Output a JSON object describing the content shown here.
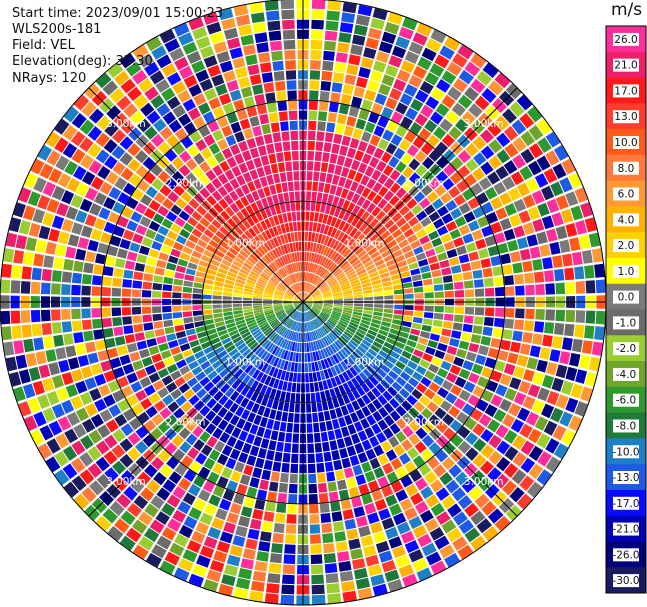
{
  "header": {
    "start_time": "Start time: 2023/09/01 15:00:23",
    "site": "WLS200s-181",
    "field": "Field: VEL",
    "elevation": "Elevation(deg): 35.30",
    "nrays": "NRays: 120"
  },
  "colorbar": {
    "unit": "m/s",
    "labels": [
      "26.0",
      "21.0",
      "17.0",
      "13.0",
      "10.0",
      "8.0",
      "6.0",
      "4.0",
      "2.0",
      "1.0",
      "0.0",
      "-1.0",
      "-2.0",
      "-4.0",
      "-6.0",
      "-8.0",
      "-10.0",
      "-13.0",
      "-17.0",
      "-21.0",
      "-26.0",
      "-30.0"
    ],
    "colors": [
      "#ff2e9a",
      "#ee1f6a",
      "#ff1a1a",
      "#ff3d2e",
      "#ff5a1a",
      "#ff7a3a",
      "#ff9933",
      "#ffb300",
      "#ffd000",
      "#ffff00",
      "#7a7a7a",
      "#6b6b6b",
      "#9acd32",
      "#6fa52a",
      "#2e9a2e",
      "#1f7a3a",
      "#1e7fc8",
      "#1e5ae6",
      "#0a0aff",
      "#0000b4",
      "#00007a",
      "#1a1a5e"
    ]
  },
  "chart_data": {
    "type": "polar-ppi",
    "n_rays": 120,
    "max_range_km": 3.0,
    "range_rings_km": [
      1.0,
      2.0,
      3.0
    ],
    "ring_labels": [
      "1.00km",
      "2.00km",
      "3.00km"
    ],
    "grid": true
  }
}
